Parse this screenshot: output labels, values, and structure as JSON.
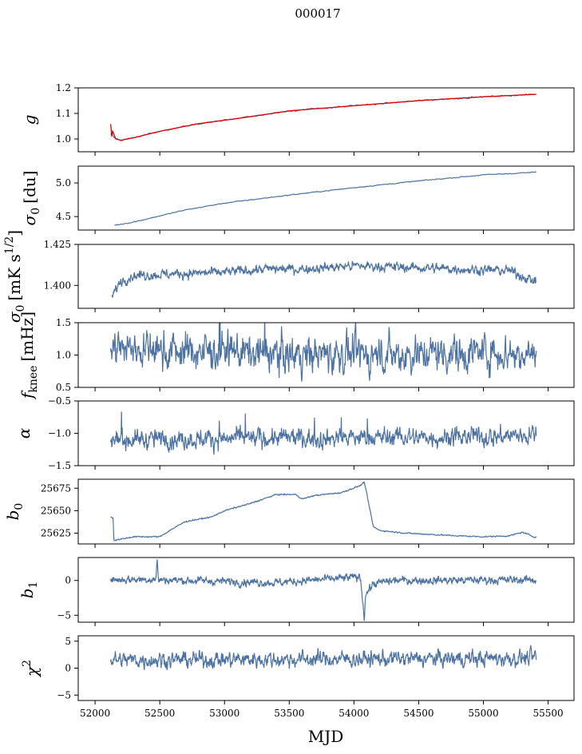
{
  "figure": {
    "title": "000017"
  },
  "colors": {
    "line": "#4c72a3",
    "fit": "#e00000",
    "frame": "#000000"
  },
  "chart_data": {
    "type": "line",
    "x_axis": {
      "label": "MJD",
      "range": [
        51870,
        55700
      ],
      "ticks": [
        52000,
        52500,
        53000,
        53500,
        54000,
        54500,
        55000,
        55500
      ],
      "tick_labels": [
        "52000",
        "52500",
        "53000",
        "53500",
        "54000",
        "54500",
        "55000",
        "55500"
      ]
    },
    "x_data_range": [
      52120,
      55410
    ],
    "panels": [
      {
        "id": "g",
        "ylabel_main": "g",
        "ylabel_sub": "",
        "ylabel_unit": "",
        "ylim": [
          0.95,
          1.2
        ],
        "yticks": [
          1.0,
          1.1,
          1.2
        ],
        "ytick_labels": [
          "1.0",
          "1.1",
          "1.2"
        ],
        "series": [
          {
            "kind": "keypoints",
            "x": [
              52120,
              52160,
              52200,
              52300,
              52500,
              52800,
              53100,
              53500,
              54000,
              54500,
              55000,
              55410
            ],
            "y": [
              1.02,
              1.0,
              0.995,
              1.005,
              1.03,
              1.06,
              1.08,
              1.11,
              1.13,
              1.15,
              1.165,
              1.175
            ]
          },
          {
            "kind": "fit",
            "x": [
              52120,
              52160,
              52200,
              52300,
              52500,
              52800,
              53100,
              53500,
              54000,
              54500,
              55000,
              55410
            ],
            "y": [
              1.05,
              1.0,
              0.995,
              1.005,
              1.03,
              1.06,
              1.08,
              1.11,
              1.13,
              1.15,
              1.165,
              1.175
            ]
          }
        ]
      },
      {
        "id": "sigma0_du",
        "ylabel_main": "σ",
        "ylabel_sub": "0",
        "ylabel_unit": "[du]",
        "ylim": [
          4.3,
          5.25
        ],
        "yticks": [
          4.5,
          5.0
        ],
        "ytick_labels": [
          "4.5",
          "5.0"
        ],
        "series": [
          {
            "kind": "keypoints",
            "x": [
              52150,
              52300,
              52700,
              53000,
              53500,
              54000,
              54500,
              55000,
              55410
            ],
            "y": [
              4.37,
              4.42,
              4.6,
              4.7,
              4.82,
              4.93,
              5.03,
              5.12,
              5.16
            ]
          }
        ]
      },
      {
        "id": "sigma0_mk",
        "ylabel_main": "σ",
        "ylabel_sub": "0",
        "ylabel_unit": "[mK s",
        "ylabel_sup": "1/2",
        "ylabel_close": "]",
        "ylim": [
          1.386,
          1.425
        ],
        "yticks": [
          1.4,
          1.425
        ],
        "ytick_labels": [
          "1.400",
          "1.425"
        ],
        "series": [
          {
            "kind": "keypoints",
            "x": [
              52130,
              52200,
              52300,
              52600,
              53000,
              53300,
              53600,
              54000,
              54400,
              54800,
              55200,
              55410
            ],
            "y": [
              1.393,
              1.403,
              1.406,
              1.407,
              1.408,
              1.41,
              1.41,
              1.412,
              1.411,
              1.41,
              1.409,
              1.402
            ]
          }
        ]
      },
      {
        "id": "fknee",
        "ylabel_main": "f",
        "ylabel_sub": "knee",
        "ylabel_unit": "[mHz]",
        "ylim": [
          0.5,
          1.5
        ],
        "yticks": [
          0.5,
          1.0,
          1.5
        ],
        "ytick_labels": [
          "0.5",
          "1.0",
          "1.5"
        ],
        "series": [
          {
            "kind": "keypoints",
            "x": [
              52120,
              53000,
              54000,
              55000,
              55410
            ],
            "y": [
              1.1,
              1.05,
              1.0,
              1.05,
              1.0
            ]
          }
        ]
      },
      {
        "id": "alpha",
        "ylabel_main": "α",
        "ylabel_sub": "",
        "ylabel_unit": "",
        "ylim": [
          -1.5,
          -0.5
        ],
        "yticks": [
          -1.5,
          -1.0,
          -0.5
        ],
        "ytick_labels": [
          "−1.5",
          "−1.0",
          "−0.5"
        ],
        "series": [
          {
            "kind": "keypoints",
            "x": [
              52120,
              53000,
              54000,
              55000,
              55410
            ],
            "y": [
              -1.1,
              -1.08,
              -1.07,
              -1.05,
              -1.03
            ]
          }
        ]
      },
      {
        "id": "b0",
        "ylabel_main": "b",
        "ylabel_sub": "0",
        "ylabel_unit": "",
        "ylim": [
          25613,
          25685
        ],
        "yticks": [
          25625,
          25650,
          25675
        ],
        "ytick_labels": [
          "25625",
          "25650",
          "25675"
        ],
        "series": [
          {
            "kind": "keypoints",
            "x": [
              52120,
              52140,
              52145,
              52300,
              52500,
              52600,
              52700,
              52900,
              53000,
              53200,
              53400,
              53550,
              53600,
              53700,
              53900,
              54050,
              54080,
              54150,
              54200,
              54400,
              54800,
              55000,
              55200,
              55300,
              55410
            ],
            "y": [
              25643,
              25642,
              25617,
              25621,
              25621,
              25630,
              25638,
              25643,
              25650,
              25658,
              25668,
              25668,
              25663,
              25667,
              25670,
              25678,
              25682,
              25632,
              25628,
              25625,
              25622,
              25621,
              25622,
              25626,
              25620
            ]
          }
        ]
      },
      {
        "id": "b1",
        "ylabel_main": "b",
        "ylabel_sub": "1",
        "ylabel_unit": "",
        "ylim": [
          -6,
          3.3
        ],
        "yticks": [
          -5,
          0
        ],
        "ytick_labels": [
          "−5",
          "0"
        ],
        "series": [
          {
            "kind": "keypoints",
            "x": [
              52120,
              52470,
              52480,
              52490,
              53400,
              54050,
              54080,
              54090,
              54150,
              54300,
              55410
            ],
            "y": [
              0.1,
              0.2,
              2.8,
              0.1,
              -0.3,
              0.5,
              -5.3,
              -2.0,
              -0.5,
              0.0,
              0.1
            ]
          }
        ]
      },
      {
        "id": "chi2",
        "ylabel_main": "χ",
        "ylabel_sub": "",
        "ylabel_unit": "",
        "ylabel_sup": "2",
        "ylim": [
          -6,
          6
        ],
        "yticks": [
          -5,
          0,
          5
        ],
        "ytick_labels": [
          "−5",
          "0",
          "5"
        ],
        "series": [
          {
            "kind": "keypoints",
            "x": [
              52120,
              53000,
              54000,
              55000,
              55410
            ],
            "y": [
              1.5,
              1.6,
              1.7,
              1.8,
              1.9
            ]
          }
        ]
      }
    ]
  }
}
